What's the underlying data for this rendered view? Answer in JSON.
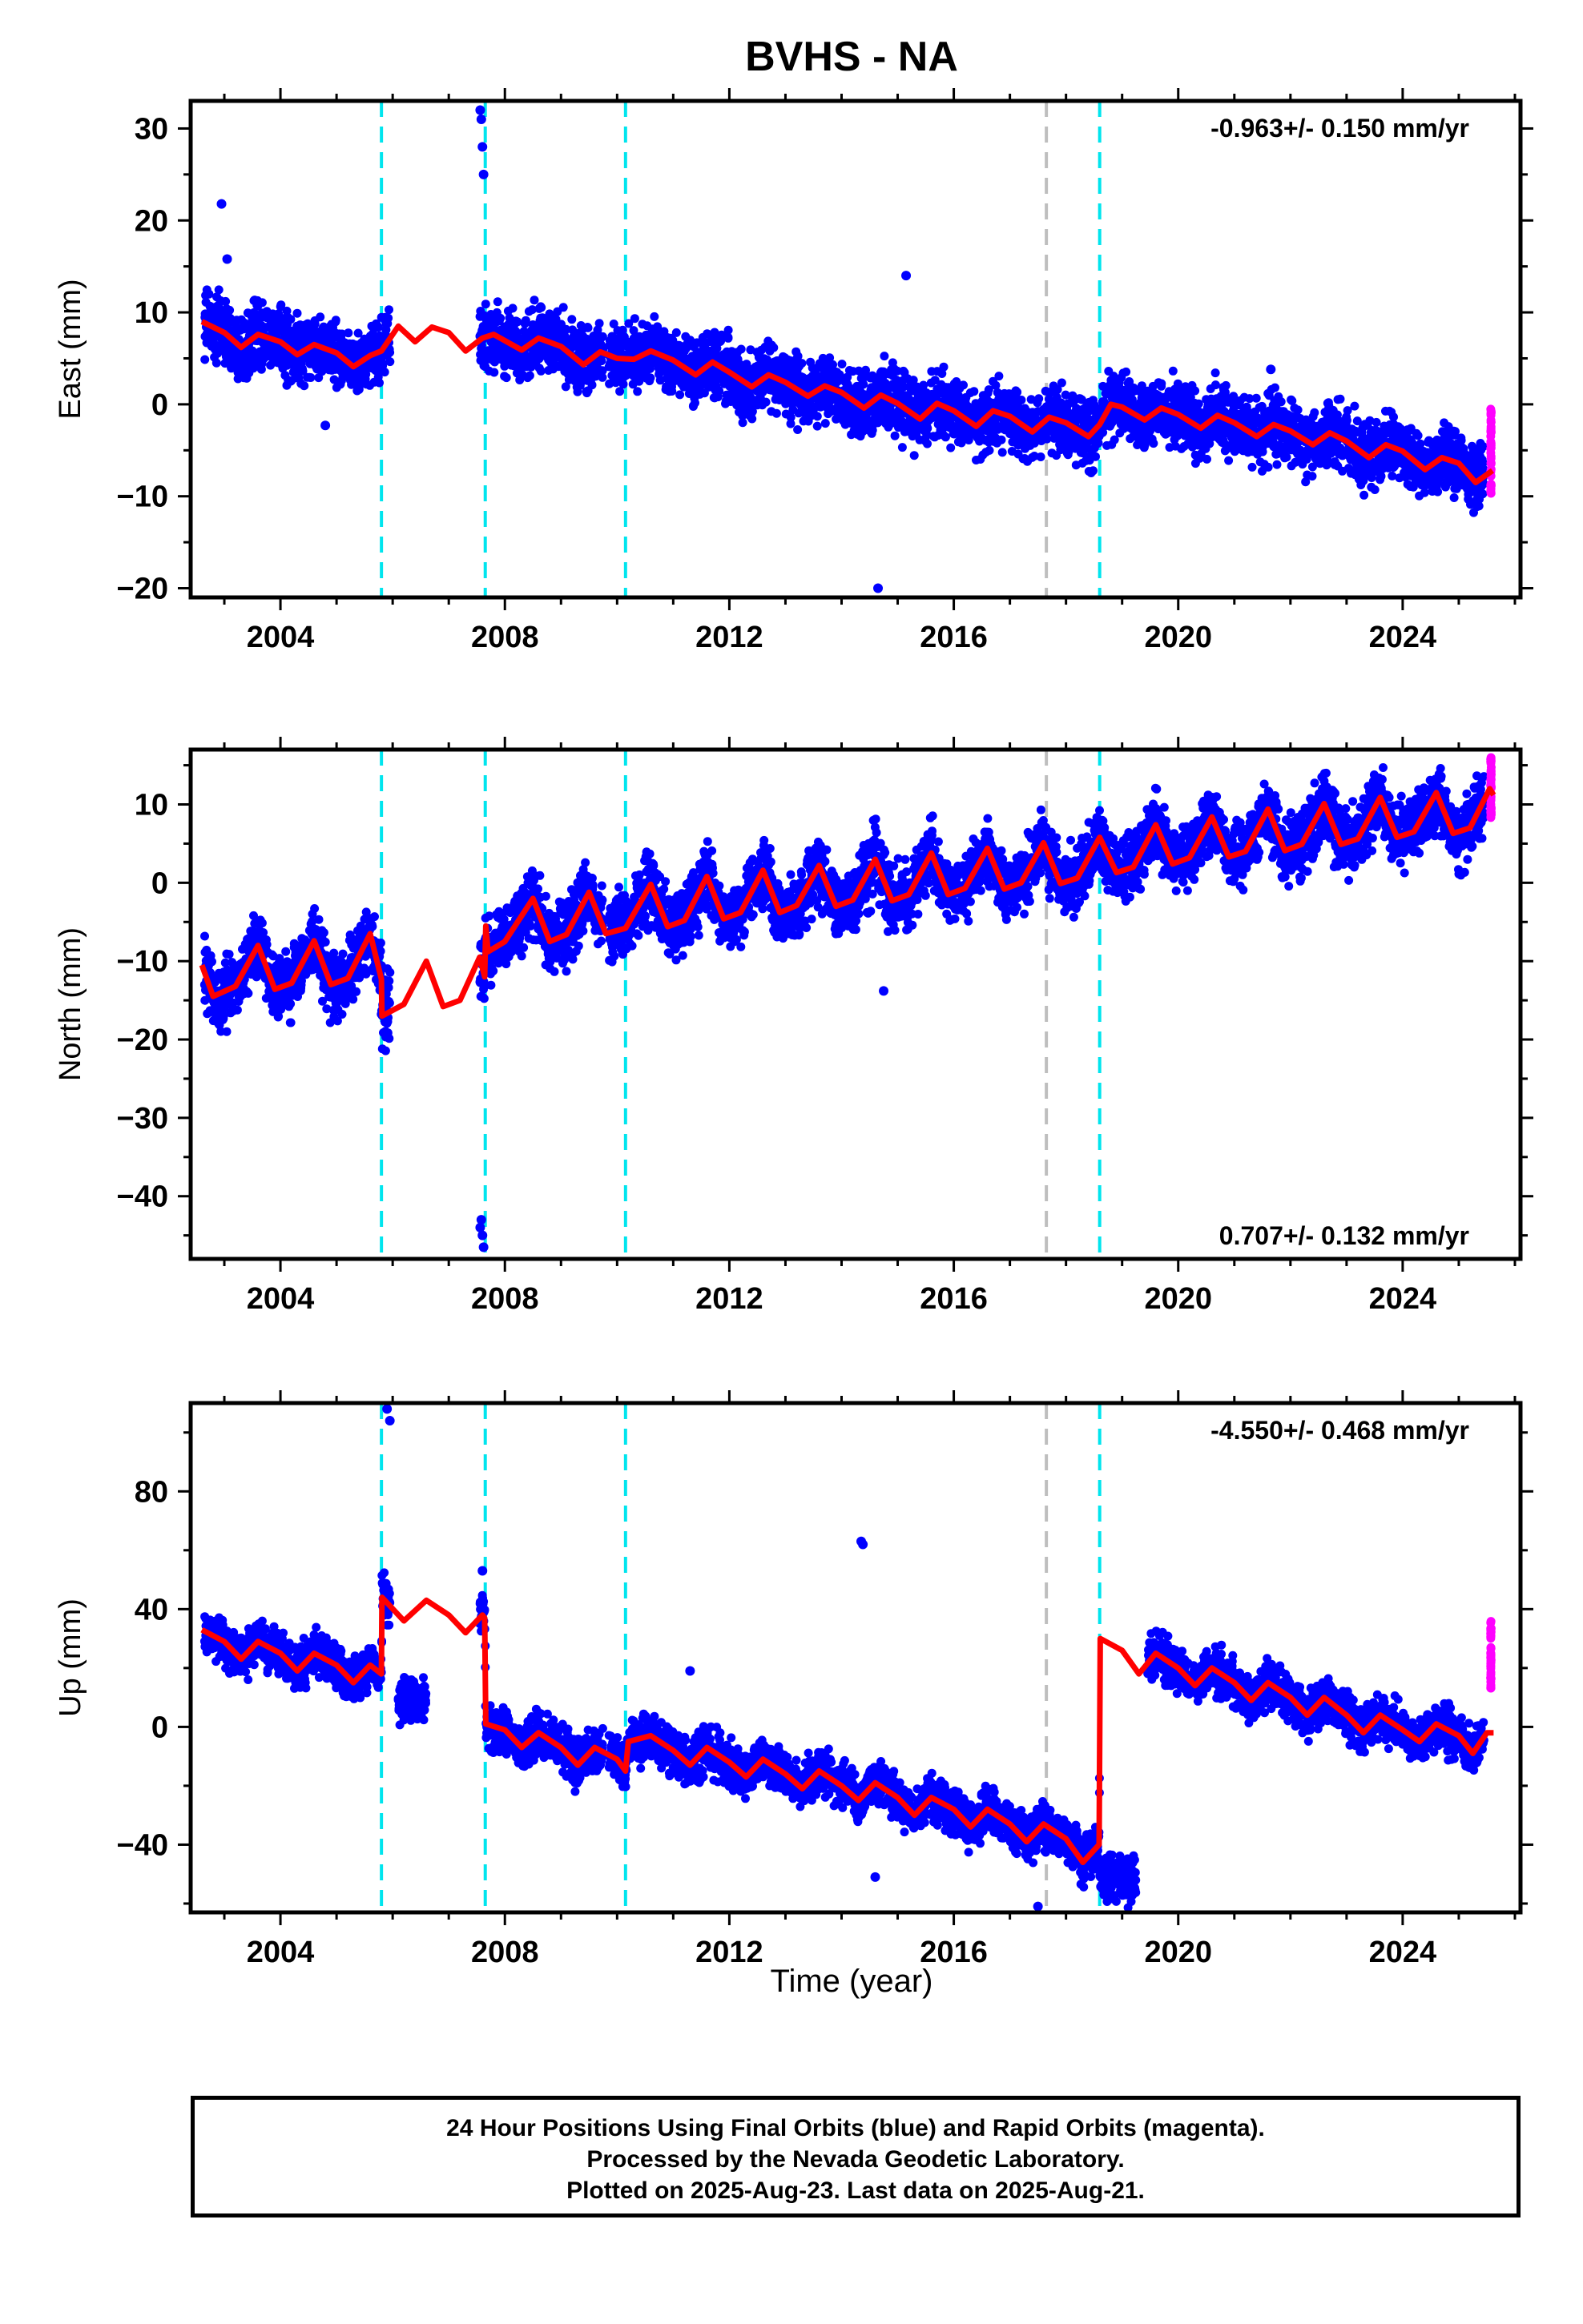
{
  "title": "BVHS - NA",
  "xlabel": "Time (year)",
  "caption": {
    "line1": "24 Hour Positions Using Final Orbits (blue) and Rapid Orbits (magenta).",
    "line2": "Processed by the Nevada Geodetic Laboratory.",
    "line3": "Plotted on 2025-Aug-23. Last data on 2025-Aug-21."
  },
  "colors": {
    "final_orbits": "#0000ff",
    "rapid_orbits": "#ff00ff",
    "model": "#ff0000",
    "event_antenna": "#00e5ee",
    "event_other": "#bebebe"
  },
  "chart_data": [
    {
      "type": "scatter",
      "name": "east",
      "ylabel": "East (mm)",
      "rate_label": "-0.963+/- 0.150 mm/yr",
      "rate_position": "top-right",
      "xlim": [
        2002.4,
        2026.1
      ],
      "ylim": [
        -21,
        33
      ],
      "xticks": [
        2004,
        2008,
        2012,
        2016,
        2020,
        2024
      ],
      "yticks": [
        -20,
        -10,
        0,
        10,
        20,
        30
      ],
      "grid": false,
      "event_lines_cyan": [
        2005.8,
        2007.65,
        2010.15,
        2018.6
      ],
      "event_lines_gray": [
        2017.65
      ],
      "model": [
        [
          2002.6,
          9
        ],
        [
          2003.0,
          7.8
        ],
        [
          2003.3,
          6.2
        ],
        [
          2003.6,
          7.6
        ],
        [
          2004.0,
          6.8
        ],
        [
          2004.3,
          5.4
        ],
        [
          2004.6,
          6.5
        ],
        [
          2005.0,
          5.6
        ],
        [
          2005.3,
          4.1
        ],
        [
          2005.6,
          5.3
        ],
        [
          2005.8,
          5.8
        ],
        [
          2006.1,
          8.5
        ],
        [
          2006.4,
          6.8
        ],
        [
          2006.7,
          8.4
        ],
        [
          2007.0,
          7.8
        ],
        [
          2007.3,
          5.8
        ],
        [
          2007.6,
          7.2
        ],
        [
          2007.8,
          7.6
        ],
        [
          2008.3,
          5.9
        ],
        [
          2008.6,
          7.2
        ],
        [
          2009.0,
          6.3
        ],
        [
          2009.4,
          4.3
        ],
        [
          2009.7,
          5.7
        ],
        [
          2010.0,
          5.0
        ],
        [
          2010.3,
          4.9
        ],
        [
          2010.6,
          5.8
        ],
        [
          2011.0,
          4.8
        ],
        [
          2011.4,
          3.2
        ],
        [
          2011.7,
          4.6
        ],
        [
          2012.0,
          3.5
        ],
        [
          2012.4,
          1.9
        ],
        [
          2012.7,
          3.2
        ],
        [
          2013.0,
          2.4
        ],
        [
          2013.4,
          0.9
        ],
        [
          2013.7,
          2.0
        ],
        [
          2014.0,
          1.3
        ],
        [
          2014.4,
          -0.4
        ],
        [
          2014.7,
          1.0
        ],
        [
          2015.0,
          0.1
        ],
        [
          2015.4,
          -1.6
        ],
        [
          2015.7,
          0.1
        ],
        [
          2016.0,
          -0.7
        ],
        [
          2016.4,
          -2.4
        ],
        [
          2016.7,
          -0.7
        ],
        [
          2017.0,
          -1.3
        ],
        [
          2017.4,
          -3.0
        ],
        [
          2017.7,
          -1.4
        ],
        [
          2018.0,
          -2.0
        ],
        [
          2018.4,
          -3.5
        ],
        [
          2018.6,
          -2.2
        ],
        [
          2018.8,
          0.0
        ],
        [
          2019.0,
          -0.3
        ],
        [
          2019.4,
          -1.7
        ],
        [
          2019.7,
          -0.4
        ],
        [
          2020.0,
          -1.1
        ],
        [
          2020.4,
          -2.6
        ],
        [
          2020.7,
          -1.2
        ],
        [
          2021.0,
          -2.0
        ],
        [
          2021.4,
          -3.5
        ],
        [
          2021.7,
          -2.2
        ],
        [
          2022.0,
          -2.9
        ],
        [
          2022.4,
          -4.4
        ],
        [
          2022.7,
          -3.1
        ],
        [
          2023.0,
          -4.0
        ],
        [
          2023.4,
          -5.8
        ],
        [
          2023.7,
          -4.4
        ],
        [
          2024.0,
          -5.1
        ],
        [
          2024.4,
          -7.1
        ],
        [
          2024.7,
          -5.8
        ],
        [
          2025.0,
          -6.4
        ],
        [
          2025.3,
          -8.5
        ],
        [
          2025.6,
          -7.2
        ]
      ],
      "rapid": {
        "x_range": [
          2025.45,
          2025.62
        ],
        "y_range": [
          -10,
          -0.5
        ]
      },
      "outliers": [
        [
          2002.95,
          21.8
        ],
        [
          2003.05,
          15.8
        ],
        [
          2004.8,
          -2.3
        ],
        [
          2007.58,
          31
        ],
        [
          2007.6,
          28
        ],
        [
          2007.62,
          25
        ],
        [
          2007.56,
          32
        ],
        [
          2015.15,
          14
        ],
        [
          2014.65,
          -20
        ],
        [
          2021.65,
          3.8
        ]
      ]
    },
    {
      "type": "scatter",
      "name": "north",
      "ylabel": "North (mm)",
      "rate_label": "0.707+/- 0.132 mm/yr",
      "rate_position": "bottom-right",
      "xlim": [
        2002.4,
        2026.1
      ],
      "ylim": [
        -48,
        17
      ],
      "xticks": [
        2004,
        2008,
        2012,
        2016,
        2020,
        2024
      ],
      "yticks": [
        -40,
        -30,
        -20,
        -10,
        0,
        10
      ],
      "grid": false,
      "event_lines_cyan": [
        2005.8,
        2007.65,
        2010.15,
        2018.6
      ],
      "event_lines_gray": [
        2017.65
      ],
      "model": [
        [
          2002.6,
          -10.5
        ],
        [
          2002.8,
          -14.5
        ],
        [
          2003.2,
          -13.2
        ],
        [
          2003.6,
          -8.0
        ],
        [
          2003.9,
          -13.6
        ],
        [
          2004.2,
          -12.8
        ],
        [
          2004.6,
          -7.4
        ],
        [
          2004.9,
          -13.0
        ],
        [
          2005.2,
          -12.2
        ],
        [
          2005.6,
          -6.5
        ],
        [
          2005.8,
          -12.3
        ],
        [
          2005.81,
          -17.0
        ],
        [
          2006.2,
          -15.5
        ],
        [
          2006.6,
          -10.0
        ],
        [
          2006.9,
          -15.8
        ],
        [
          2007.2,
          -15.0
        ],
        [
          2007.55,
          -9.5
        ],
        [
          2007.64,
          -12.0
        ],
        [
          2007.66,
          -5.5
        ],
        [
          2007.7,
          -8.8
        ],
        [
          2008.0,
          -7.5
        ],
        [
          2008.5,
          -2.0
        ],
        [
          2008.8,
          -7.5
        ],
        [
          2009.1,
          -6.6
        ],
        [
          2009.5,
          -1.2
        ],
        [
          2009.8,
          -6.5
        ],
        [
          2010.15,
          -5.8
        ],
        [
          2010.6,
          -0.2
        ],
        [
          2010.9,
          -5.6
        ],
        [
          2011.2,
          -4.8
        ],
        [
          2011.6,
          0.8
        ],
        [
          2011.9,
          -4.6
        ],
        [
          2012.2,
          -3.8
        ],
        [
          2012.6,
          1.6
        ],
        [
          2012.9,
          -3.8
        ],
        [
          2013.2,
          -2.9
        ],
        [
          2013.6,
          2.2
        ],
        [
          2013.9,
          -3.0
        ],
        [
          2014.2,
          -2.2
        ],
        [
          2014.6,
          3.0
        ],
        [
          2014.9,
          -2.3
        ],
        [
          2015.2,
          -1.5
        ],
        [
          2015.6,
          3.8
        ],
        [
          2015.9,
          -1.5
        ],
        [
          2016.2,
          -0.7
        ],
        [
          2016.6,
          4.4
        ],
        [
          2016.9,
          -0.8
        ],
        [
          2017.2,
          0.0
        ],
        [
          2017.6,
          5.1
        ],
        [
          2017.9,
          -0.1
        ],
        [
          2018.2,
          0.6
        ],
        [
          2018.6,
          5.8
        ],
        [
          2018.9,
          1.3
        ],
        [
          2019.2,
          2.0
        ],
        [
          2019.6,
          7.4
        ],
        [
          2019.9,
          2.4
        ],
        [
          2020.2,
          3.2
        ],
        [
          2020.6,
          8.4
        ],
        [
          2020.9,
          3.3
        ],
        [
          2021.2,
          4.0
        ],
        [
          2021.6,
          9.4
        ],
        [
          2021.9,
          4.1
        ],
        [
          2022.2,
          4.9
        ],
        [
          2022.6,
          10.1
        ],
        [
          2022.9,
          4.9
        ],
        [
          2023.2,
          5.6
        ],
        [
          2023.6,
          10.9
        ],
        [
          2023.9,
          5.8
        ],
        [
          2024.2,
          6.5
        ],
        [
          2024.6,
          11.5
        ],
        [
          2024.9,
          6.3
        ],
        [
          2025.2,
          7.0
        ],
        [
          2025.55,
          12.0
        ],
        [
          2025.62,
          11.2
        ]
      ],
      "rapid": {
        "x_range": [
          2025.45,
          2025.62
        ],
        "y_range": [
          7,
          16
        ]
      },
      "outliers": [
        [
          2007.58,
          -43
        ],
        [
          2007.6,
          -45
        ],
        [
          2007.62,
          -46.5
        ],
        [
          2007.56,
          -44
        ],
        [
          2014.75,
          -13.8
        ],
        [
          2010.8,
          -4.5
        ]
      ]
    },
    {
      "type": "scatter",
      "name": "up",
      "ylabel": "Up (mm)",
      "rate_label": "-4.550+/- 0.468 mm/yr",
      "rate_position": "top-right",
      "xlim": [
        2002.4,
        2026.1
      ],
      "ylim": [
        -63,
        110
      ],
      "xticks": [
        2004,
        2008,
        2012,
        2016,
        2020,
        2024
      ],
      "yticks": [
        -40,
        0,
        40,
        80
      ],
      "grid": false,
      "event_lines_cyan": [
        2005.8,
        2007.65,
        2010.15,
        2018.6
      ],
      "event_lines_gray": [
        2017.65
      ],
      "model": [
        [
          2002.6,
          33
        ],
        [
          2003.0,
          29
        ],
        [
          2003.3,
          23
        ],
        [
          2003.6,
          29
        ],
        [
          2004.0,
          25
        ],
        [
          2004.3,
          19
        ],
        [
          2004.6,
          25
        ],
        [
          2005.0,
          21
        ],
        [
          2005.3,
          15
        ],
        [
          2005.6,
          21
        ],
        [
          2005.8,
          18
        ],
        [
          2005.81,
          44
        ],
        [
          2006.2,
          36
        ],
        [
          2006.6,
          43
        ],
        [
          2007.0,
          38
        ],
        [
          2007.3,
          32
        ],
        [
          2007.6,
          38
        ],
        [
          2007.64,
          37
        ],
        [
          2007.66,
          1
        ],
        [
          2008.0,
          -1
        ],
        [
          2008.3,
          -7
        ],
        [
          2008.6,
          -2
        ],
        [
          2009.0,
          -7
        ],
        [
          2009.3,
          -13
        ],
        [
          2009.6,
          -7
        ],
        [
          2010.0,
          -11
        ],
        [
          2010.15,
          -15
        ],
        [
          2010.2,
          -5
        ],
        [
          2010.6,
          -3
        ],
        [
          2011.0,
          -8
        ],
        [
          2011.3,
          -13
        ],
        [
          2011.6,
          -7
        ],
        [
          2012.0,
          -12
        ],
        [
          2012.3,
          -17
        ],
        [
          2012.6,
          -11
        ],
        [
          2013.0,
          -16
        ],
        [
          2013.3,
          -21
        ],
        [
          2013.6,
          -15
        ],
        [
          2014.0,
          -20
        ],
        [
          2014.3,
          -25
        ],
        [
          2014.6,
          -19
        ],
        [
          2015.0,
          -24
        ],
        [
          2015.3,
          -30
        ],
        [
          2015.6,
          -24
        ],
        [
          2016.0,
          -28
        ],
        [
          2016.3,
          -34
        ],
        [
          2016.6,
          -28
        ],
        [
          2017.0,
          -33
        ],
        [
          2017.3,
          -39
        ],
        [
          2017.6,
          -33
        ],
        [
          2018.0,
          -38
        ],
        [
          2018.3,
          -46
        ],
        [
          2018.59,
          -40
        ],
        [
          2018.61,
          30
        ],
        [
          2019.0,
          26
        ],
        [
          2019.3,
          18
        ],
        [
          2019.6,
          25
        ],
        [
          2020.0,
          20
        ],
        [
          2020.3,
          14
        ],
        [
          2020.6,
          20
        ],
        [
          2021.0,
          15
        ],
        [
          2021.3,
          9
        ],
        [
          2021.6,
          15
        ],
        [
          2022.0,
          10
        ],
        [
          2022.3,
          4
        ],
        [
          2022.6,
          10
        ],
        [
          2023.0,
          4
        ],
        [
          2023.3,
          -2
        ],
        [
          2023.6,
          4
        ],
        [
          2024.0,
          -1
        ],
        [
          2024.3,
          -5
        ],
        [
          2024.6,
          1
        ],
        [
          2025.0,
          -3
        ],
        [
          2025.25,
          -9
        ],
        [
          2025.5,
          -2
        ],
        [
          2025.62,
          -2
        ]
      ],
      "rapid": {
        "x_range": [
          2025.45,
          2025.62
        ],
        "y_range": [
          13,
          37
        ]
      },
      "outliers": [
        [
          2005.9,
          108
        ],
        [
          2005.95,
          104
        ],
        [
          2007.6,
          53
        ],
        [
          2014.35,
          63
        ],
        [
          2014.38,
          62
        ],
        [
          2011.3,
          19
        ],
        [
          2014.6,
          -51
        ],
        [
          2017.5,
          -61
        ]
      ]
    }
  ]
}
